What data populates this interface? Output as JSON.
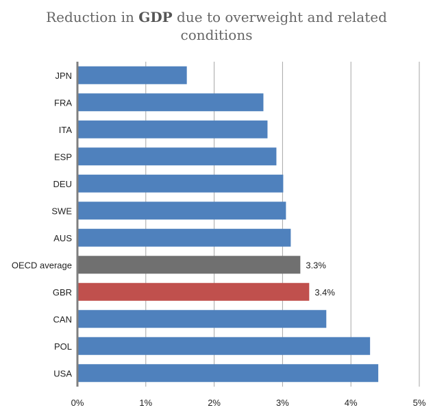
{
  "chart_data": {
    "type": "bar",
    "orientation": "horizontal",
    "title_parts": [
      "Reduction in ",
      "GDP",
      " due to overweight and related",
      "conditions"
    ],
    "categories": [
      "JPN",
      "FRA",
      "ITA",
      "ESP",
      "DEU",
      "SWE",
      "AUS",
      "OECD average",
      "GBR",
      "CAN",
      "POL",
      "USA"
    ],
    "values": [
      1.6,
      2.72,
      2.78,
      2.91,
      3.01,
      3.05,
      3.12,
      3.26,
      3.39,
      3.64,
      4.28,
      4.4
    ],
    "bar_colors": [
      "#4f81bd",
      "#4f81bd",
      "#4f81bd",
      "#4f81bd",
      "#4f81bd",
      "#4f81bd",
      "#4f81bd",
      "#707070",
      "#c0504d",
      "#4f81bd",
      "#4f81bd",
      "#4f81bd"
    ],
    "data_labels": [
      null,
      null,
      null,
      null,
      null,
      null,
      null,
      "3.3%",
      "3.4%",
      null,
      null,
      null
    ],
    "x_ticks": [
      "0%",
      "1%",
      "2%",
      "3%",
      "4%",
      "5%"
    ],
    "xlim": [
      0,
      5
    ],
    "xlabel": "",
    "ylabel": "",
    "grid": "vertical",
    "legend": "none"
  }
}
